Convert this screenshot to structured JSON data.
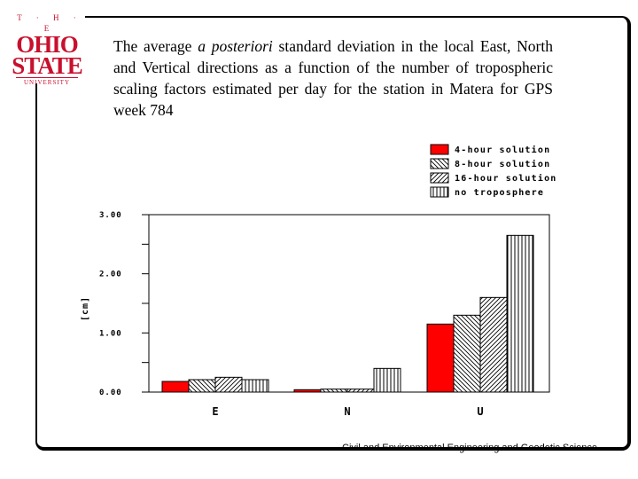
{
  "logo": {
    "the": "T · H · E",
    "line1": "OHIO",
    "line2": "STATE",
    "line3": "UNIVERSITY"
  },
  "title": {
    "before": "The average ",
    "emph": "a posteriori",
    "after": " standard deviation in the local East, North  and Vertical directions as a function of the number of tropospheric scaling factors estimated per day for the station in Matera for GPS week 784"
  },
  "footer": "Civil and Environmental Engineering and Geodetic Science",
  "chart_data": {
    "type": "bar",
    "categories": [
      "E",
      "N",
      "U"
    ],
    "series": [
      {
        "name": "4-hour solution",
        "values": [
          0.18,
          0.04,
          1.15
        ],
        "fill": "solid-red"
      },
      {
        "name": "8-hour solution",
        "values": [
          0.21,
          0.05,
          1.3
        ],
        "fill": "hatch-back"
      },
      {
        "name": "16-hour solution",
        "values": [
          0.25,
          0.05,
          1.6
        ],
        "fill": "hatch-forward"
      },
      {
        "name": "no troposphere",
        "values": [
          0.21,
          0.4,
          2.65
        ],
        "fill": "vertical-lines"
      }
    ],
    "ylabel": "[cm]",
    "ylim": [
      0,
      3
    ],
    "yticks": [
      "0.00",
      "1.00",
      "2.00",
      "3.00"
    ],
    "legend_position": "top-right",
    "colors": {
      "red": "#ff0000",
      "stroke": "#000000"
    }
  }
}
